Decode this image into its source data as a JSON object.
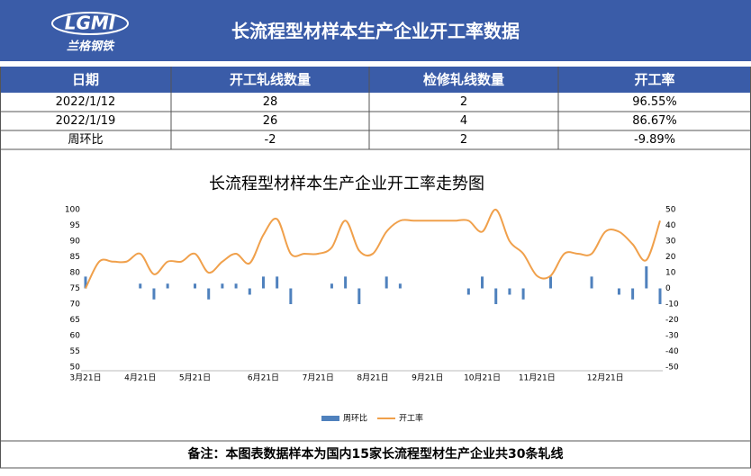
{
  "header": {
    "logo": "LGMI",
    "logo_sub": "兰格钢铁",
    "title": "长流程型材样本生产企业开工率数据"
  },
  "table": {
    "columns": [
      "日期",
      "开工轧线数量",
      "检修轧线数量",
      "开工率"
    ],
    "rows": [
      [
        "2022/1/12",
        "28",
        "2",
        "96.55%"
      ],
      [
        "2022/1/19",
        "26",
        "4",
        "86.67%"
      ],
      [
        "周环比",
        "-2",
        "2",
        "-9.89%"
      ]
    ]
  },
  "chart_data": {
    "type": "combo",
    "title": "长流程型材样本生产企业开工率走势图",
    "categories": [
      "3月21日",
      null,
      null,
      null,
      "4月21日",
      null,
      null,
      null,
      "5月21日",
      null,
      null,
      null,
      null,
      "6月21日",
      null,
      null,
      null,
      "7月21日",
      null,
      null,
      null,
      "8月21日",
      null,
      null,
      null,
      "9月21日",
      null,
      null,
      null,
      "10月21日",
      null,
      null,
      null,
      "11月21日",
      null,
      null,
      null,
      null,
      "12月21日",
      null,
      null,
      null,
      null
    ],
    "series": [
      {
        "name": "周环比",
        "color": "#4f81bd",
        "axis": "y2",
        "values": [
          7.5,
          0,
          0,
          0,
          3,
          -7,
          3,
          0,
          3,
          -7,
          3,
          3,
          -4,
          7.5,
          7.5,
          -10,
          0,
          0,
          3,
          7.5,
          -10,
          0,
          7.5,
          3,
          0,
          0,
          0,
          0,
          -4,
          7.5,
          -10,
          -4,
          -7,
          0,
          7.5,
          0,
          0,
          7.5,
          0,
          -4,
          -7,
          14,
          -10
        ]
      },
      {
        "name": "开工率",
        "color": "#f0a04b",
        "values": [
          75,
          83.5,
          83.5,
          83.5,
          86,
          79.5,
          83.5,
          83.5,
          86,
          80,
          83.5,
          86,
          83,
          92,
          97,
          86,
          86,
          86,
          88,
          96.5,
          87,
          86,
          93,
          96.5,
          96.5,
          96.5,
          96.5,
          96.5,
          96.5,
          93,
          100,
          90,
          86,
          79,
          79,
          86,
          86,
          86,
          93,
          93,
          89,
          84,
          96.5
        ]
      }
    ],
    "ylim": [
      50,
      100
    ],
    "yticks": [
      50,
      55,
      60,
      65,
      70,
      75,
      80,
      85,
      90,
      95,
      100
    ],
    "y2lim": [
      -50,
      50
    ],
    "y2ticks": [
      -50,
      -40,
      -30,
      -20,
      -10,
      0,
      10,
      20,
      30,
      40,
      50
    ],
    "legend": "bottom"
  },
  "footer": "备注：本图表数据样本为国内15家长流程型材生产企业共30条轧线"
}
